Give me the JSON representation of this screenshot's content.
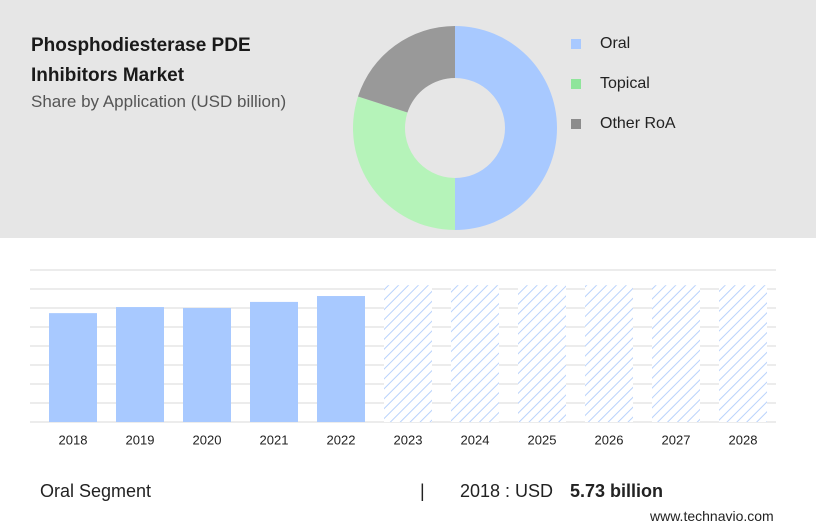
{
  "chart_data": [
    {
      "type": "donut",
      "title": "Phosphodiesterase PDE Inhibitors Market",
      "subtitle": "Share by Application (USD billion)",
      "categories": [
        "Oral",
        "Topical",
        "Other RoA"
      ],
      "values": [
        50,
        30,
        20
      ],
      "colors": [
        "#a8c9ff",
        "#b5f3b9",
        "#999999"
      ],
      "legend_colors": [
        "#a8c9ff",
        "#8fe59b",
        "#8c8c8c"
      ]
    },
    {
      "type": "bar",
      "categories": [
        "2018",
        "2019",
        "2020",
        "2021",
        "2022",
        "2023",
        "2024",
        "2025",
        "2026",
        "2027",
        "2028"
      ],
      "values": [
        5.73,
        6.05,
        6.0,
        6.32,
        6.63,
        7.2,
        7.2,
        7.2,
        7.2,
        7.2,
        7.2
      ],
      "color": "#a8c9ff",
      "forecast_start_index": 5,
      "ylim": [
        0,
        8
      ],
      "yticks": [
        0,
        1,
        2,
        3,
        4,
        5,
        6,
        7,
        8
      ],
      "grid": true
    }
  ],
  "footer": {
    "segment": "Oral Segment",
    "separator": "|",
    "year_label": "2018 : USD",
    "value_label": "5.73 billion"
  },
  "source": "www.technavio.com"
}
